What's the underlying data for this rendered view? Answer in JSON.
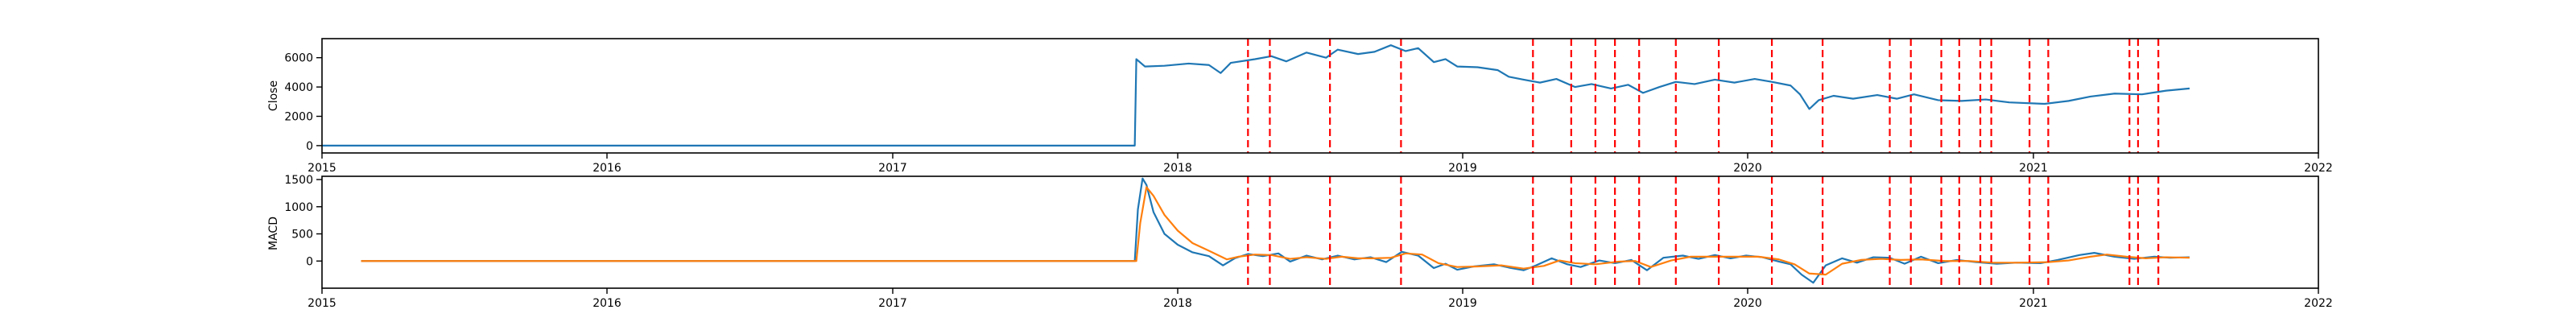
{
  "chart_data": [
    {
      "type": "line",
      "ylabel": "Close",
      "xlim": [
        "2015-01-01",
        "2022-01-01"
      ],
      "ylim": [
        -500,
        7300
      ],
      "x_ticks": [
        "2015",
        "2016",
        "2017",
        "2018",
        "2019",
        "2020",
        "2021",
        "2022"
      ],
      "y_ticks": [
        0,
        2000,
        4000,
        6000
      ],
      "y_tick_labels": [
        "0",
        "2000",
        "4000",
        "6000"
      ],
      "grid": false,
      "series": [
        {
          "color": "#1f77b4",
          "points": [
            [
              "2015-01-01",
              0
            ],
            [
              "2017-11-01",
              0
            ],
            [
              "2017-11-07",
              0
            ],
            [
              "2017-11-09",
              5900
            ],
            [
              "2017-11-20",
              5400
            ],
            [
              "2017-12-15",
              5450
            ],
            [
              "2018-01-15",
              5600
            ],
            [
              "2018-02-10",
              5500
            ],
            [
              "2018-02-25",
              4950
            ],
            [
              "2018-03-10",
              5650
            ],
            [
              "2018-04-10",
              5900
            ],
            [
              "2018-05-01",
              6100
            ],
            [
              "2018-05-20",
              5750
            ],
            [
              "2018-06-15",
              6350
            ],
            [
              "2018-07-10",
              6000
            ],
            [
              "2018-07-25",
              6550
            ],
            [
              "2018-08-20",
              6250
            ],
            [
              "2018-09-10",
              6400
            ],
            [
              "2018-10-01",
              6850
            ],
            [
              "2018-10-20",
              6450
            ],
            [
              "2018-11-05",
              6650
            ],
            [
              "2018-11-25",
              5700
            ],
            [
              "2018-12-10",
              5900
            ],
            [
              "2018-12-25",
              5400
            ],
            [
              "2019-01-20",
              5350
            ],
            [
              "2019-02-15",
              5150
            ],
            [
              "2019-03-01",
              4700
            ],
            [
              "2019-03-20",
              4500
            ],
            [
              "2019-04-10",
              4300
            ],
            [
              "2019-05-01",
              4550
            ],
            [
              "2019-05-25",
              4000
            ],
            [
              "2019-06-15",
              4200
            ],
            [
              "2019-07-10",
              3900
            ],
            [
              "2019-08-01",
              4150
            ],
            [
              "2019-08-20",
              3600
            ],
            [
              "2019-09-10",
              4000
            ],
            [
              "2019-10-01",
              4350
            ],
            [
              "2019-10-25",
              4200
            ],
            [
              "2019-11-20",
              4500
            ],
            [
              "2019-12-15",
              4300
            ],
            [
              "2020-01-10",
              4550
            ],
            [
              "2020-02-01",
              4350
            ],
            [
              "2020-02-25",
              4100
            ],
            [
              "2020-03-08",
              3500
            ],
            [
              "2020-03-20",
              2500
            ],
            [
              "2020-04-01",
              3100
            ],
            [
              "2020-04-20",
              3400
            ],
            [
              "2020-05-15",
              3200
            ],
            [
              "2020-06-15",
              3450
            ],
            [
              "2020-07-10",
              3200
            ],
            [
              "2020-08-01",
              3500
            ],
            [
              "2020-09-01",
              3100
            ],
            [
              "2020-10-01",
              3050
            ],
            [
              "2020-11-01",
              3150
            ],
            [
              "2020-12-01",
              2950
            ],
            [
              "2021-01-15",
              2850
            ],
            [
              "2021-02-15",
              3050
            ],
            [
              "2021-03-15",
              3350
            ],
            [
              "2021-04-15",
              3550
            ],
            [
              "2021-05-20",
              3500
            ],
            [
              "2021-06-20",
              3750
            ],
            [
              "2021-07-20",
              3900
            ]
          ]
        }
      ]
    },
    {
      "type": "line",
      "ylabel": "MACD",
      "xlim": [
        "2015-01-01",
        "2022-01-01"
      ],
      "ylim": [
        -500,
        1560
      ],
      "x_ticks": [
        "2015",
        "2016",
        "2017",
        "2018",
        "2019",
        "2020",
        "2021",
        "2022"
      ],
      "y_ticks": [
        0,
        500,
        1000,
        1500
      ],
      "y_tick_labels": [
        "0",
        "500",
        "1000",
        "1500"
      ],
      "grid": false,
      "series": [
        {
          "color": "#1f77b4",
          "points": [
            [
              "2015-02-20",
              0
            ],
            [
              "2017-11-01",
              0
            ],
            [
              "2017-11-07",
              0
            ],
            [
              "2017-11-11",
              950
            ],
            [
              "2017-11-17",
              1520
            ],
            [
              "2017-11-22",
              1400
            ],
            [
              "2017-12-01",
              900
            ],
            [
              "2017-12-15",
              500
            ],
            [
              "2018-01-01",
              300
            ],
            [
              "2018-01-20",
              160
            ],
            [
              "2018-02-10",
              90
            ],
            [
              "2018-02-28",
              -80
            ],
            [
              "2018-03-15",
              50
            ],
            [
              "2018-04-01",
              130
            ],
            [
              "2018-04-20",
              90
            ],
            [
              "2018-05-10",
              140
            ],
            [
              "2018-05-25",
              -10
            ],
            [
              "2018-06-15",
              100
            ],
            [
              "2018-07-05",
              30
            ],
            [
              "2018-07-25",
              100
            ],
            [
              "2018-08-15",
              30
            ],
            [
              "2018-09-05",
              70
            ],
            [
              "2018-09-25",
              -20
            ],
            [
              "2018-10-15",
              170
            ],
            [
              "2018-11-05",
              100
            ],
            [
              "2018-11-25",
              -130
            ],
            [
              "2018-12-10",
              -50
            ],
            [
              "2018-12-25",
              -160
            ],
            [
              "2019-01-15",
              -100
            ],
            [
              "2019-02-10",
              -60
            ],
            [
              "2019-03-01",
              -120
            ],
            [
              "2019-03-20",
              -170
            ],
            [
              "2019-04-05",
              -80
            ],
            [
              "2019-04-25",
              50
            ],
            [
              "2019-05-15",
              -60
            ],
            [
              "2019-06-01",
              -110
            ],
            [
              "2019-06-25",
              10
            ],
            [
              "2019-07-15",
              -40
            ],
            [
              "2019-08-05",
              20
            ],
            [
              "2019-08-25",
              -170
            ],
            [
              "2019-09-15",
              60
            ],
            [
              "2019-10-10",
              100
            ],
            [
              "2019-10-30",
              40
            ],
            [
              "2019-11-20",
              110
            ],
            [
              "2019-12-10",
              50
            ],
            [
              "2019-12-30",
              100
            ],
            [
              "2020-01-20",
              70
            ],
            [
              "2020-02-10",
              -10
            ],
            [
              "2020-02-25",
              -60
            ],
            [
              "2020-03-10",
              -250
            ],
            [
              "2020-03-25",
              -400
            ],
            [
              "2020-04-10",
              -80
            ],
            [
              "2020-05-01",
              50
            ],
            [
              "2020-05-20",
              -30
            ],
            [
              "2020-06-10",
              70
            ],
            [
              "2020-07-01",
              60
            ],
            [
              "2020-07-20",
              -50
            ],
            [
              "2020-08-10",
              80
            ],
            [
              "2020-09-01",
              -40
            ],
            [
              "2020-09-25",
              20
            ],
            [
              "2020-10-20",
              -20
            ],
            [
              "2020-11-15",
              -50
            ],
            [
              "2020-12-10",
              -30
            ],
            [
              "2021-01-10",
              -40
            ],
            [
              "2021-02-01",
              20
            ],
            [
              "2021-03-01",
              110
            ],
            [
              "2021-03-20",
              150
            ],
            [
              "2021-04-15",
              80
            ],
            [
              "2021-05-10",
              40
            ],
            [
              "2021-06-05",
              80
            ],
            [
              "2021-06-25",
              60
            ],
            [
              "2021-07-20",
              70
            ]
          ]
        },
        {
          "color": "#ff7f0e",
          "points": [
            [
              "2015-02-20",
              0
            ],
            [
              "2017-11-01",
              0
            ],
            [
              "2017-11-09",
              0
            ],
            [
              "2017-11-14",
              700
            ],
            [
              "2017-11-22",
              1360
            ],
            [
              "2017-12-01",
              1200
            ],
            [
              "2017-12-15",
              850
            ],
            [
              "2018-01-01",
              560
            ],
            [
              "2018-01-20",
              330
            ],
            [
              "2018-02-10",
              190
            ],
            [
              "2018-03-05",
              30
            ],
            [
              "2018-03-20",
              80
            ],
            [
              "2018-04-10",
              120
            ],
            [
              "2018-05-01",
              110
            ],
            [
              "2018-05-25",
              40
            ],
            [
              "2018-06-15",
              70
            ],
            [
              "2018-07-10",
              40
            ],
            [
              "2018-07-30",
              80
            ],
            [
              "2018-08-20",
              50
            ],
            [
              "2018-09-10",
              50
            ],
            [
              "2018-10-01",
              60
            ],
            [
              "2018-10-20",
              140
            ],
            [
              "2018-11-10",
              120
            ],
            [
              "2018-12-01",
              -40
            ],
            [
              "2018-12-25",
              -110
            ],
            [
              "2019-01-20",
              -100
            ],
            [
              "2019-02-20",
              -80
            ],
            [
              "2019-03-20",
              -140
            ],
            [
              "2019-04-15",
              -90
            ],
            [
              "2019-05-05",
              10
            ],
            [
              "2019-05-25",
              -40
            ],
            [
              "2019-06-20",
              -60
            ],
            [
              "2019-07-20",
              -10
            ],
            [
              "2019-08-10",
              0
            ],
            [
              "2019-08-30",
              -110
            ],
            [
              "2019-09-25",
              10
            ],
            [
              "2019-10-20",
              80
            ],
            [
              "2019-11-15",
              80
            ],
            [
              "2019-12-10",
              80
            ],
            [
              "2020-01-15",
              80
            ],
            [
              "2020-02-10",
              30
            ],
            [
              "2020-03-01",
              -60
            ],
            [
              "2020-03-20",
              -230
            ],
            [
              "2020-04-10",
              -250
            ],
            [
              "2020-05-01",
              -50
            ],
            [
              "2020-05-25",
              20
            ],
            [
              "2020-06-20",
              40
            ],
            [
              "2020-07-15",
              20
            ],
            [
              "2020-08-10",
              30
            ],
            [
              "2020-09-10",
              0
            ],
            [
              "2020-10-10",
              0
            ],
            [
              "2020-11-10",
              -30
            ],
            [
              "2020-12-10",
              -30
            ],
            [
              "2021-01-20",
              -20
            ],
            [
              "2021-02-15",
              10
            ],
            [
              "2021-03-15",
              80
            ],
            [
              "2021-04-05",
              120
            ],
            [
              "2021-04-30",
              80
            ],
            [
              "2021-05-25",
              50
            ],
            [
              "2021-06-20",
              70
            ],
            [
              "2021-07-20",
              60
            ]
          ]
        }
      ]
    }
  ],
  "markers": {
    "color": "#ff0000",
    "dates": [
      "2018-04-01",
      "2018-04-29",
      "2018-07-15",
      "2018-10-14",
      "2019-04-01",
      "2019-05-20",
      "2019-06-20",
      "2019-07-15",
      "2019-08-15",
      "2019-10-01",
      "2019-11-25",
      "2020-02-01",
      "2020-04-06",
      "2020-07-01",
      "2020-07-28",
      "2020-09-05",
      "2020-09-28",
      "2020-10-25",
      "2020-11-08",
      "2020-12-27",
      "2021-01-20",
      "2021-05-04",
      "2021-05-15",
      "2021-06-10"
    ]
  }
}
